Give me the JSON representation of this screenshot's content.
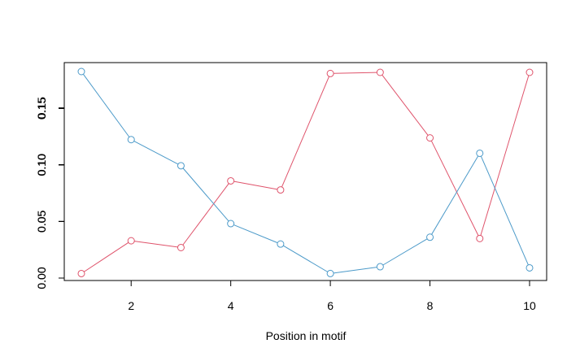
{
  "chart_data": {
    "type": "line",
    "xlabel": "Position in motif",
    "x": [
      1,
      2,
      3,
      4,
      5,
      6,
      7,
      8,
      9,
      10
    ],
    "xticks": [
      2,
      4,
      6,
      8,
      10
    ],
    "xlim": [
      1,
      10
    ],
    "series": [
      {
        "color": "#DF536B",
        "values": [
          0.004,
          0.033,
          0.027,
          0.086,
          0.078,
          0.181,
          0.182,
          0.124,
          0.035,
          0.182
        ],
        "ylim": [
          0,
          0.182
        ],
        "yticks": [
          0.0,
          0.05,
          0.1,
          0.15
        ],
        "ytick_labels": [
          "0.00",
          "0.05",
          "0.10",
          "0.15"
        ]
      },
      {
        "color": "#4C9AC9",
        "values": [
          0.182,
          0.122,
          0.099,
          0.048,
          0.03,
          0.004,
          0.01,
          0.036,
          0.11,
          0.009
        ],
        "ylim": [
          0,
          0.182
        ],
        "yticks": [
          0.0,
          0.05,
          0.1,
          0.15
        ],
        "ytick_labels": [
          "0.00",
          "0.05",
          "0.10",
          "0.15"
        ]
      }
    ],
    "grid": false,
    "legend": "none"
  }
}
